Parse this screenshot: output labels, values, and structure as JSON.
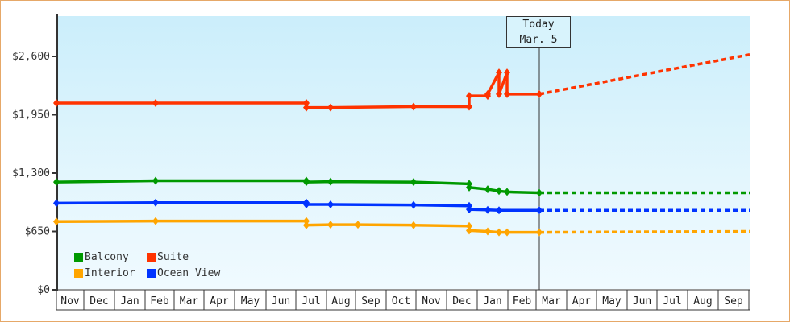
{
  "chart_data": {
    "type": "line",
    "title": "",
    "xlabel": "",
    "ylabel": "",
    "ylim": [
      0,
      2900
    ],
    "y_ticks": [
      "$0",
      "$650",
      "$1,300",
      "$1,950",
      "$2,600"
    ],
    "y_tick_values": [
      0,
      650,
      1300,
      1950,
      2600
    ],
    "x_tick_labels": [
      "Nov",
      "Dec",
      "Jan",
      "Feb",
      "Mar",
      "Apr",
      "May",
      "Jun",
      "Jul",
      "Aug",
      "Sep",
      "Oct",
      "Nov",
      "Dec",
      "Jan",
      "Feb",
      "Mar",
      "Apr",
      "May",
      "Jun",
      "Jul",
      "Aug",
      "Sep"
    ],
    "grid": false,
    "legend_position": "bottom-left inside",
    "annotation": {
      "line1": "Today",
      "line2": "Mar. 5"
    },
    "series": [
      {
        "name": "Balcony",
        "color": "#009900",
        "points": [
          [
            "Nov (start)",
            1200
          ],
          [
            "Feb",
            1215
          ],
          [
            "Jul",
            1215
          ],
          [
            "Jul",
            1200
          ],
          [
            "Aug",
            1205
          ],
          [
            "Oct",
            1200
          ],
          [
            "Dec",
            1180
          ],
          [
            "Dec",
            1140
          ],
          [
            "Jan",
            1120
          ],
          [
            "Jan",
            1100
          ],
          [
            "Jan",
            1090
          ],
          [
            "Mar 5",
            1080
          ]
        ],
        "forecast": [
          [
            "Mar 5",
            1080
          ],
          [
            "Sep",
            1080
          ]
        ]
      },
      {
        "name": "Suite",
        "color": "#ff3300",
        "points": [
          [
            "Nov (start)",
            2080
          ],
          [
            "Feb",
            2080
          ],
          [
            "Jul",
            2080
          ],
          [
            "Jul",
            2030
          ],
          [
            "Aug",
            2030
          ],
          [
            "Oct",
            2040
          ],
          [
            "Dec",
            2040
          ],
          [
            "Dec",
            2160
          ],
          [
            "Jan",
            2160
          ],
          [
            "Jan",
            2180
          ],
          [
            "Jan",
            2420
          ],
          [
            "Jan",
            2180
          ],
          [
            "Feb",
            2420
          ],
          [
            "Feb",
            2180
          ],
          [
            "Mar 5",
            2180
          ]
        ],
        "forecast": [
          [
            "Mar 5",
            2180
          ],
          [
            "Sep",
            2620
          ]
        ]
      },
      {
        "name": "Interior",
        "color": "#ffa500",
        "points": [
          [
            "Nov (start)",
            760
          ],
          [
            "Feb",
            765
          ],
          [
            "Jul",
            765
          ],
          [
            "Jul",
            720
          ],
          [
            "Aug",
            725
          ],
          [
            "Sep",
            725
          ],
          [
            "Oct",
            720
          ],
          [
            "Dec",
            710
          ],
          [
            "Dec",
            660
          ],
          [
            "Jan",
            650
          ],
          [
            "Jan",
            640
          ],
          [
            "Feb",
            640
          ],
          [
            "Mar 5",
            640
          ]
        ],
        "forecast": [
          [
            "Mar 5",
            640
          ],
          [
            "Sep",
            650
          ]
        ]
      },
      {
        "name": "Ocean View",
        "color": "#0033ff",
        "points": [
          [
            "Nov (start)",
            965
          ],
          [
            "Feb",
            970
          ],
          [
            "Jul",
            970
          ],
          [
            "Jul",
            950
          ],
          [
            "Aug",
            950
          ],
          [
            "Oct",
            945
          ],
          [
            "Dec",
            935
          ],
          [
            "Dec",
            895
          ],
          [
            "Jan",
            890
          ],
          [
            "Jan",
            885
          ],
          [
            "Mar 5",
            885
          ]
        ],
        "forecast": [
          [
            "Mar 5",
            885
          ],
          [
            "Sep",
            885
          ]
        ]
      }
    ]
  },
  "legend": [
    {
      "label": "Balcony",
      "color": "#009900"
    },
    {
      "label": "Suite",
      "color": "#ff3300"
    },
    {
      "label": "Interior",
      "color": "#ffa500"
    },
    {
      "label": "Ocean View",
      "color": "#0033ff"
    }
  ],
  "today": {
    "line1": "Today",
    "line2": "Mar. 5"
  }
}
